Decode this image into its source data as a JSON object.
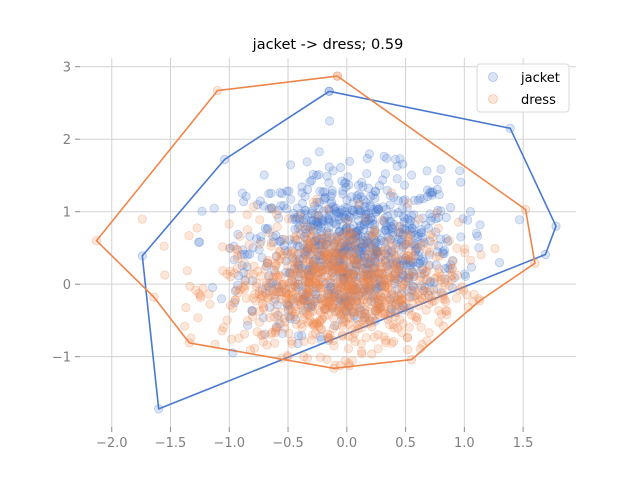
{
  "chart_data": {
    "type": "scatter",
    "title": "jacket -> dress; 0.59",
    "xlabel": "",
    "ylabel": "",
    "xlim": [
      -2.27,
      1.95
    ],
    "ylim": [
      -1.97,
      3.12
    ],
    "xticks": [
      -2.0,
      -1.5,
      -1.0,
      -0.5,
      0.0,
      0.5,
      1.0,
      1.5
    ],
    "xtick_labels": [
      "−2.0",
      "−1.5",
      "−1.0",
      "−0.5",
      "0.0",
      "0.5",
      "1.0",
      "1.5"
    ],
    "yticks": [
      -1,
      0,
      1,
      2,
      3
    ],
    "ytick_labels": [
      "−1",
      "0",
      "1",
      "2",
      "3"
    ],
    "grid": true,
    "legend_position": "top-right",
    "colors": {
      "jacket": "#4878cf",
      "dress": "#ee854a"
    },
    "series": [
      {
        "name": "jacket",
        "color": "#4878cf",
        "points_visible": 900,
        "center": [
          0.05,
          0.45
        ],
        "spread": [
          0.45,
          0.55
        ],
        "hull": [
          [
            -0.15,
            2.66
          ],
          [
            1.39,
            2.15
          ],
          [
            1.78,
            0.8
          ],
          [
            1.69,
            0.41
          ],
          [
            -1.6,
            -1.72
          ],
          [
            -1.74,
            0.39
          ],
          [
            -1.04,
            1.72
          ],
          [
            -0.15,
            2.66
          ]
        ]
      },
      {
        "name": "dress",
        "color": "#ee854a",
        "points_visible": 900,
        "center": [
          -0.05,
          -0.05
        ],
        "spread": [
          0.5,
          0.45
        ],
        "hull": [
          [
            -0.08,
            2.87
          ],
          [
            1.52,
            1.03
          ],
          [
            1.6,
            0.29
          ],
          [
            1.13,
            -0.23
          ],
          [
            0.55,
            -1.04
          ],
          [
            -0.11,
            -1.16
          ],
          [
            -1.34,
            -0.81
          ],
          [
            -1.64,
            -0.18
          ],
          [
            -2.13,
            0.6
          ],
          [
            -1.1,
            2.67
          ],
          [
            -0.08,
            2.87
          ]
        ]
      }
    ]
  }
}
